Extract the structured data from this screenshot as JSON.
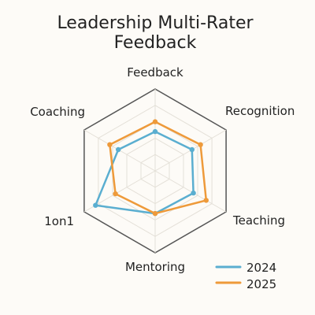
{
  "chart_data": {
    "type": "radar",
    "title_lines": [
      "Leadership Multi-Rater",
      "Feedback"
    ],
    "categories": [
      "Feedback",
      "Recognition",
      "Teaching",
      "Mentoring",
      "1on1",
      "Coaching"
    ],
    "scale": {
      "min": 0,
      "max": 5,
      "rings": 5
    },
    "grid": true,
    "legend": {
      "position": "bottom-right"
    },
    "series": [
      {
        "name": "2024",
        "color": "#5AAED0",
        "values": [
          2.4,
          2.6,
          2.7,
          2.6,
          4.2,
          2.6
        ]
      },
      {
        "name": "2025",
        "color": "#EE9A3A",
        "values": [
          3.0,
          3.2,
          3.6,
          2.6,
          2.8,
          3.2
        ]
      }
    ]
  },
  "colors": {
    "background": "#FDFBF7",
    "grid": "#E4E0D8",
    "outer_ring": "#555555",
    "text": "#222222"
  }
}
